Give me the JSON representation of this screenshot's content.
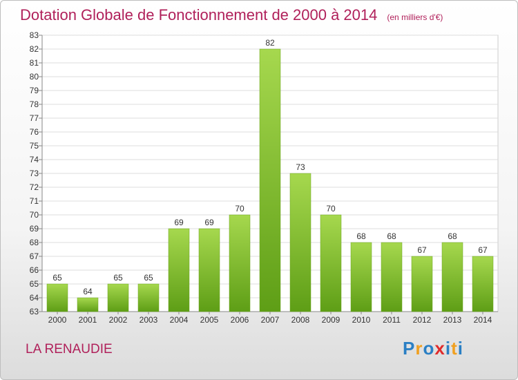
{
  "chart_data": {
    "type": "bar",
    "title": "Dotation Globale de Fonctionnement de 2000 à 2014",
    "subtitle": "(en milliers d'€)",
    "categories": [
      "2000",
      "2001",
      "2002",
      "2003",
      "2004",
      "2005",
      "2006",
      "2007",
      "2008",
      "2009",
      "2010",
      "2011",
      "2012",
      "2013",
      "2014"
    ],
    "values": [
      65,
      64,
      65,
      65,
      69,
      69,
      70,
      82,
      73,
      70,
      68,
      68,
      67,
      68,
      67
    ],
    "ylim": [
      63,
      83
    ],
    "grid": true,
    "bar_color": "#7fbf2e"
  },
  "footer": {
    "town": "LA RENAUDIE",
    "logo_letters": [
      "P",
      "r",
      "o",
      "x",
      "i",
      "t",
      "i"
    ],
    "logo_colors": [
      "#2a7fc4",
      "#f0a020",
      "#2a7fc4",
      "#e02b2b",
      "#2a7fc4",
      "#f0a020",
      "#2a7fc4"
    ]
  }
}
